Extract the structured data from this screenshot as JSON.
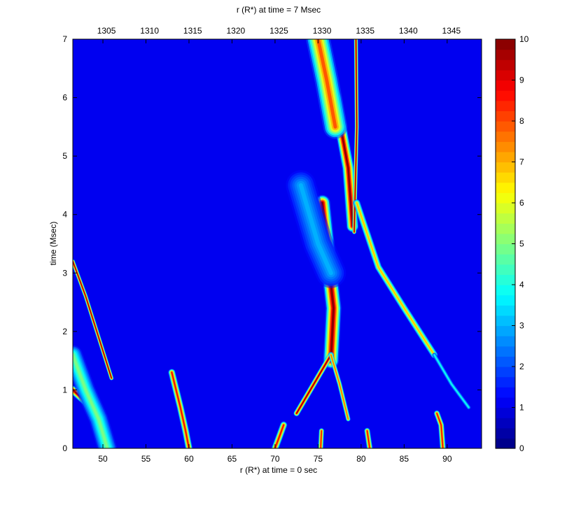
{
  "chart_data": {
    "type": "heatmap",
    "title": "r (R*) at time = 7 Msec",
    "xlabel": "r (R*) at time = 0 sec",
    "ylabel": "time (Msec)",
    "xlim": [
      46.5,
      94
    ],
    "ylim": [
      0,
      7
    ],
    "x_ticks": [
      50,
      55,
      60,
      65,
      70,
      75,
      80,
      85,
      90
    ],
    "y_ticks": [
      0,
      1,
      2,
      3,
      4,
      5,
      6,
      7
    ],
    "top_axis_ticks": [
      1305,
      1310,
      1315,
      1320,
      1325,
      1330,
      1335,
      1340,
      1345
    ],
    "top_axis_range": [
      1301.1,
      1348.5
    ],
    "colorbar": {
      "range": [
        0,
        10
      ],
      "ticks": [
        0,
        1,
        2,
        3,
        4,
        5,
        6,
        7,
        8,
        9,
        10
      ],
      "colormap": "jet"
    },
    "background_level": 1.1,
    "features": [
      {
        "name": "left-shock-upper",
        "points": [
          [
            46.5,
            3.2
          ],
          [
            48,
            2.6
          ],
          [
            49.5,
            1.9
          ],
          [
            51,
            1.2
          ]
        ],
        "peak": 10,
        "width": 0.35
      },
      {
        "name": "left-shock-lower",
        "points": [
          [
            46.5,
            1.0
          ],
          [
            48,
            0.8
          ],
          [
            49.5,
            0.5
          ],
          [
            50.3,
            0.15
          ]
        ],
        "peak": 10,
        "width": 0.7
      },
      {
        "name": "left-shock-fan",
        "points": [
          [
            46.5,
            1.6
          ],
          [
            48,
            1.0
          ],
          [
            49.5,
            0.5
          ],
          [
            50.5,
            0.0
          ]
        ],
        "peak": 5,
        "width": 1.6
      },
      {
        "name": "jet-60",
        "points": [
          [
            58,
            1.3
          ],
          [
            59,
            0.7
          ],
          [
            59.6,
            0.3
          ],
          [
            60,
            0.0
          ]
        ],
        "peak": 9,
        "width": 0.6
      },
      {
        "name": "jet-70",
        "points": [
          [
            70,
            0.0
          ],
          [
            70.5,
            0.2
          ],
          [
            71,
            0.4
          ]
        ],
        "peak": 9,
        "width": 0.6
      },
      {
        "name": "jet-75",
        "points": [
          [
            75.3,
            0.0
          ],
          [
            75.4,
            0.3
          ]
        ],
        "peak": 9,
        "width": 0.45
      },
      {
        "name": "jet-81",
        "points": [
          [
            81,
            0.0
          ],
          [
            80.7,
            0.3
          ]
        ],
        "peak": 9,
        "width": 0.5
      },
      {
        "name": "jet-89",
        "points": [
          [
            89.5,
            0.0
          ],
          [
            89.3,
            0.4
          ],
          [
            88.8,
            0.6
          ]
        ],
        "peak": 9,
        "width": 0.5
      },
      {
        "name": "central-column",
        "points": [
          [
            76.5,
            1.5
          ],
          [
            76.8,
            2.4
          ],
          [
            76.2,
            3.2
          ],
          [
            75.5,
            4.2
          ]
        ],
        "peak": 10,
        "width": 1.3
      },
      {
        "name": "x-left-arm",
        "points": [
          [
            72.5,
            0.6
          ],
          [
            74.5,
            1.1
          ],
          [
            76.5,
            1.6
          ]
        ],
        "peak": 10,
        "width": 0.5
      },
      {
        "name": "x-right-arm",
        "points": [
          [
            78.5,
            0.5
          ],
          [
            77.5,
            1.1
          ],
          [
            76.5,
            1.6
          ]
        ],
        "peak": 8,
        "width": 0.4
      },
      {
        "name": "upper-band",
        "points": [
          [
            79,
            3.8
          ],
          [
            78.5,
            4.8
          ],
          [
            77,
            6.0
          ],
          [
            74.5,
            7.0
          ]
        ],
        "peak": 10,
        "width": 1.0
      },
      {
        "name": "upper-wide",
        "points": [
          [
            77,
            5.5
          ],
          [
            76,
            6.3
          ],
          [
            75,
            7.0
          ]
        ],
        "peak": 8,
        "width": 2.0
      },
      {
        "name": "spike-right",
        "points": [
          [
            79.2,
            3.7
          ],
          [
            79.5,
            5.5
          ],
          [
            79.4,
            7.0
          ]
        ],
        "peak": 10,
        "width": 0.35
      },
      {
        "name": "right-shock",
        "points": [
          [
            79.5,
            4.2
          ],
          [
            82,
            3.1
          ],
          [
            85,
            2.4
          ],
          [
            88.5,
            1.6
          ]
        ],
        "peak": 7,
        "width": 0.6
      },
      {
        "name": "right-shock-tail",
        "points": [
          [
            88.5,
            1.6
          ],
          [
            90.5,
            1.1
          ],
          [
            92.5,
            0.7
          ]
        ],
        "peak": 4,
        "width": 0.35
      },
      {
        "name": "faint-fan-center",
        "points": [
          [
            73,
            4.5
          ],
          [
            75,
            3.5
          ],
          [
            76.5,
            3.0
          ]
        ],
        "peak": 3,
        "width": 2.5
      }
    ]
  }
}
